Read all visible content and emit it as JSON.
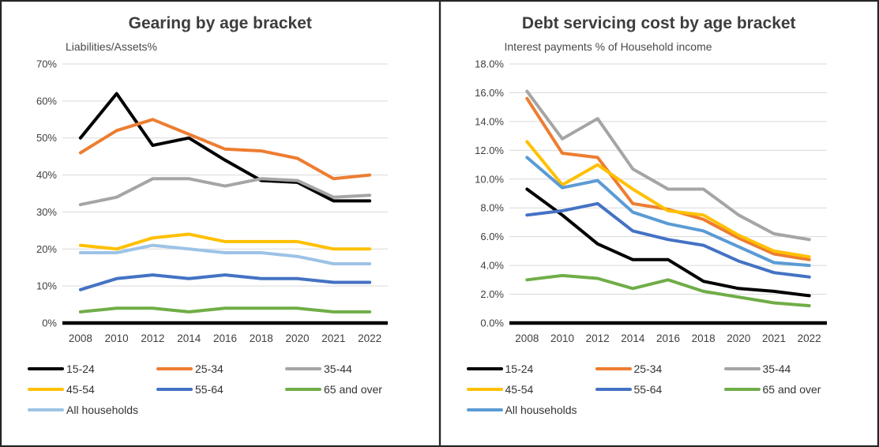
{
  "chart_data": [
    {
      "type": "line",
      "title": "Gearing by age bracket",
      "subtitle": "Liabilities/Assets%",
      "ylabel": "Liabilities/Assets%",
      "xlabel": "",
      "ylim": [
        0,
        70
      ],
      "y_step": 10,
      "y_tick_decimals": 0,
      "y_tick_suffix": "%",
      "grid": true,
      "legend_position": "bottom",
      "categories": [
        "2008",
        "2010",
        "2012",
        "2014",
        "2016",
        "2018",
        "2020",
        "2021",
        "2022"
      ],
      "series": [
        {
          "name": "15-24",
          "color": "#000000",
          "values": [
            50,
            62,
            48,
            50,
            44,
            38.5,
            38,
            33,
            33
          ]
        },
        {
          "name": "25-34",
          "color": "#ED7D31",
          "values": [
            46,
            52,
            55,
            51,
            47,
            46.5,
            44.5,
            39,
            40
          ]
        },
        {
          "name": "35-44",
          "color": "#A5A5A5",
          "values": [
            32,
            34,
            39,
            39,
            37,
            39,
            38.5,
            34,
            34.5
          ]
        },
        {
          "name": "45-54",
          "color": "#FFC000",
          "values": [
            21,
            20,
            23,
            24,
            22,
            22,
            22,
            20,
            20
          ]
        },
        {
          "name": "55-64",
          "color": "#4472C4",
          "values": [
            9,
            12,
            13,
            12,
            13,
            12,
            12,
            11,
            11
          ]
        },
        {
          "name": "65 and over",
          "color": "#70AD47",
          "values": [
            3,
            4,
            4,
            3,
            4,
            4,
            4,
            3,
            3
          ]
        },
        {
          "name": "All households",
          "color": "#9DC3E6",
          "values": [
            19,
            19,
            21,
            20,
            19,
            19,
            18,
            16,
            16
          ]
        }
      ]
    },
    {
      "type": "line",
      "title": "Debt servicing cost by age bracket",
      "subtitle": "Interest payments % of Household income",
      "ylabel": "Interest payments % of Household income",
      "xlabel": "",
      "ylim": [
        0,
        18
      ],
      "y_step": 2,
      "y_tick_decimals": 1,
      "y_tick_suffix": "%",
      "grid": true,
      "legend_position": "bottom",
      "categories": [
        "2008",
        "2010",
        "2012",
        "2014",
        "2016",
        "2018",
        "2020",
        "2021",
        "2022"
      ],
      "series": [
        {
          "name": "15-24",
          "color": "#000000",
          "values": [
            9.3,
            7.5,
            5.5,
            4.4,
            4.4,
            2.9,
            2.4,
            2.2,
            1.9
          ]
        },
        {
          "name": "25-34",
          "color": "#ED7D31",
          "values": [
            15.6,
            11.8,
            11.5,
            8.3,
            7.9,
            7.2,
            5.9,
            4.8,
            4.4
          ]
        },
        {
          "name": "35-44",
          "color": "#A5A5A5",
          "values": [
            16.1,
            12.8,
            14.2,
            10.7,
            9.3,
            9.3,
            7.5,
            6.2,
            5.8
          ]
        },
        {
          "name": "45-54",
          "color": "#FFC000",
          "values": [
            12.6,
            9.6,
            11.0,
            9.3,
            7.8,
            7.5,
            6.1,
            5.0,
            4.6
          ]
        },
        {
          "name": "55-64",
          "color": "#4472C4",
          "values": [
            7.5,
            7.8,
            8.3,
            6.4,
            5.8,
            5.4,
            4.3,
            3.5,
            3.2
          ]
        },
        {
          "name": "65 and over",
          "color": "#70AD47",
          "values": [
            3.0,
            3.3,
            3.1,
            2.4,
            3.0,
            2.2,
            1.8,
            1.4,
            1.2
          ]
        },
        {
          "name": "All households",
          "color": "#5B9BD5",
          "values": [
            11.5,
            9.4,
            9.9,
            7.7,
            6.9,
            6.4,
            5.3,
            4.2,
            4.0
          ]
        }
      ]
    }
  ]
}
